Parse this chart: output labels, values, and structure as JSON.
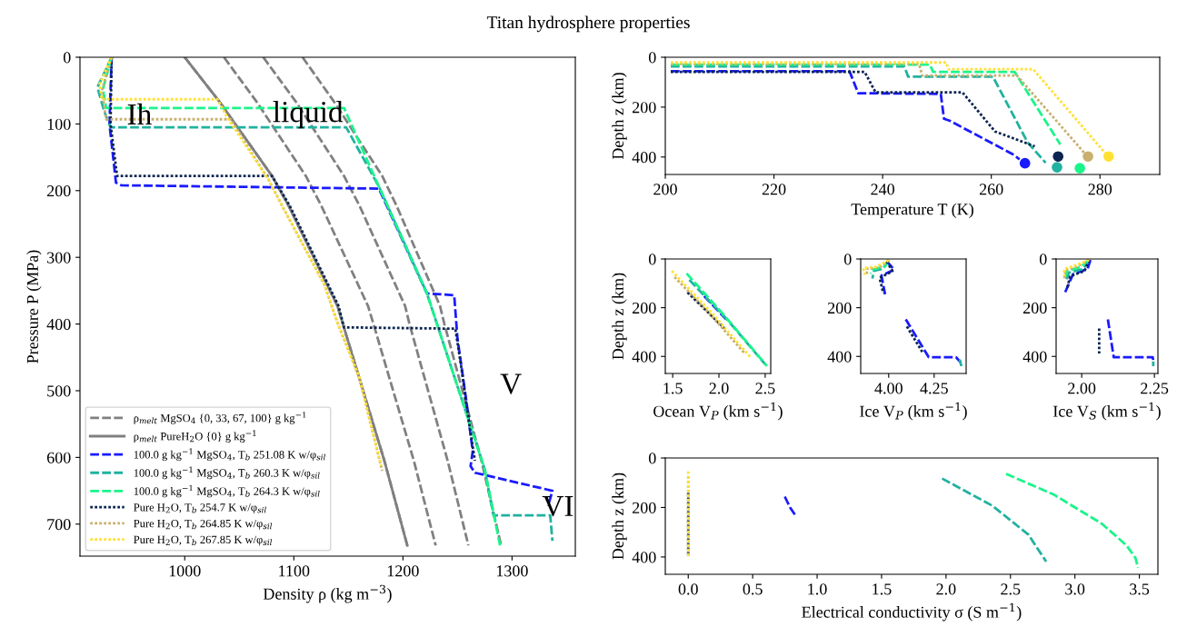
{
  "chart_data": [
    {
      "type": "line",
      "title": "Titan hydrosphere properties",
      "xlabel": "Density ρ (kg m$^{−3}$)",
      "ylabel": "Pressure P (MPa)",
      "xlim": [
        904,
        1358
      ],
      "ylim": [
        748,
        0
      ],
      "xticks": [
        1000,
        1100,
        1200,
        1300
      ],
      "yticks": [
        0,
        100,
        200,
        300,
        400,
        500,
        600,
        700
      ],
      "legend": "bottom left",
      "annotations": [
        "Ih",
        "liquid",
        "V",
        "VI"
      ],
      "series": [
        {
          "name": "ρ$_{melt}$ MgSO$_{4}$ {0, 33, 67, 100} g kg$^{−1}$",
          "color": "#808080",
          "line_style": "dashed",
          "x": [
            1000,
            1032,
            1080,
            1095,
            1140,
            1145,
            1183,
            1204
          ],
          "values": [
            0,
            67,
            178,
            222,
            373,
            400,
            605,
            732
          ]
        },
        {
          "color": "#808080",
          "line_style": "dashed",
          "x": [
            1036,
            1066,
            1111,
            1125,
            1168,
            1173,
            1210,
            1230
          ],
          "values": [
            0,
            67,
            178,
            222,
            373,
            400,
            605,
            732
          ]
        },
        {
          "color": "#808080",
          "line_style": "dashed",
          "x": [
            1072,
            1102,
            1146,
            1160,
            1202,
            1206,
            1241,
            1260
          ],
          "values": [
            0,
            67,
            178,
            222,
            373,
            400,
            605,
            732
          ]
        },
        {
          "color": "#808080",
          "line_style": "dashed",
          "x": [
            1108,
            1137,
            1181,
            1194,
            1234,
            1238,
            1272,
            1290
          ],
          "values": [
            0,
            67,
            178,
            222,
            373,
            400,
            605,
            732
          ]
        },
        {
          "name": "ρ$_{melt}$ PureH$_{2}$O {0} g kg$^{−1}$",
          "color": "#808080",
          "line_style": "solid",
          "x": [
            1000,
            1032,
            1080,
            1095,
            1140,
            1145,
            1183,
            1204
          ],
          "values": [
            0,
            67,
            178,
            222,
            373,
            400,
            605,
            732
          ]
        },
        {
          "name": "100.0 g kg$^{−1}$ MgSO$_{4}$, T$_{b}$ 251.08 K w/φ$_{sil}$",
          "color": "#1a1aff",
          "line_style": "dashed",
          "x": [
            933,
            931,
            937,
            942,
            1178,
            1222,
            1247,
            1250,
            1258,
            1264,
            1262,
            1266,
            1337,
            1333
          ],
          "values": [
            0,
            100,
            188,
            192,
            197,
            354,
            357,
            422,
            514,
            591,
            613,
            623,
            650,
            673
          ]
        },
        {
          "name": "100.0 g kg$^{−1}$ MgSO$_{4}$, T$_{b}$ 260.3 K w/φ$_{sil}$",
          "color": "#20b2a0",
          "line_style": "dashed",
          "x": [
            933,
            920,
            926,
            932,
            1148,
            1178,
            1222,
            1275,
            1283,
            1335,
            1337
          ],
          "values": [
            0,
            45,
            80,
            105,
            105,
            194,
            354,
            618,
            687,
            687,
            725
          ]
        },
        {
          "name": "100.0 g kg$^{−1}$ MgSO$_{4}$, T$_{b}$ 264.3 K w/φ$_{sil}$",
          "color": "#1af58a",
          "line_style": "dashed",
          "x": [
            933,
            925,
            928,
            1146,
            1178,
            1222,
            1275,
            1289
          ],
          "values": [
            0,
            48,
            76,
            76,
            194,
            354,
            618,
            732
          ]
        },
        {
          "name": "Pure H$_{2}$O, T$_{b}$ 254.7 K w/φ$_{sil}$",
          "color": "#0b2550",
          "line_style": "dotted",
          "x": [
            933,
            932,
            938,
            1080,
            1096,
            1141,
            1146,
            1248,
            1253,
            1262,
            1266
          ],
          "values": [
            0,
            100,
            178,
            178,
            222,
            373,
            405,
            407,
            459,
            564,
            605
          ]
        },
        {
          "name": "Pure H$_{2}$O, T$_{b}$ 264.85 K w/φ$_{sil}$",
          "color": "#c8b06e",
          "line_style": "dotted",
          "x": [
            933,
            924,
            928,
            1042,
            1077,
            1090,
            1128,
            1140,
            1160,
            1181
          ],
          "values": [
            0,
            50,
            93,
            93,
            184,
            225,
            341,
            398,
            480,
            620
          ]
        },
        {
          "name": "Pure H$_{2}$O, T$_{b}$ 267.85 K w/φ$_{sil}$",
          "color": "#ffe135",
          "line_style": "dotted",
          "x": [
            933,
            922,
            924,
            1030,
            1040,
            1077,
            1090,
            1128,
            1140,
            1160,
            1180
          ],
          "values": [
            0,
            40,
            63,
            63,
            93,
            184,
            225,
            341,
            398,
            480,
            613
          ]
        }
      ]
    },
    {
      "type": "line",
      "xlabel": "Temperature T (K)",
      "ylabel": "Depth z (km)",
      "xlim": [
        200,
        291
      ],
      "ylim": [
        470,
        0
      ],
      "xticks": [
        200,
        220,
        240,
        260,
        280
      ],
      "yticks": [
        0,
        200,
        400
      ],
      "series": [
        {
          "color": "#1a1aff",
          "line_style": "dashed",
          "x": [
            201,
            233.9,
            235.5,
            250.7,
            251.3,
            252.3,
            263.8,
            265.2
          ],
          "values": [
            56,
            56,
            144,
            147,
            247,
            254,
            387,
            409
          ]
        },
        {
          "color": "#20b2a0",
          "line_style": "dashed",
          "x": [
            201,
            244,
            244.7,
            260.3,
            266.7,
            270
          ],
          "values": [
            37,
            37,
            78,
            78,
            342,
            423
          ]
        },
        {
          "color": "#1af58a",
          "line_style": "dashed",
          "x": [
            201,
            248.7,
            249.3,
            264.3,
            272.7
          ],
          "values": [
            30,
            30,
            59,
            59,
            350
          ]
        },
        {
          "color": "#0b2550",
          "line_style": "dotted",
          "x": [
            201,
            236.7,
            238.7,
            254.7,
            260.7,
            268
          ],
          "values": [
            59,
            59,
            141,
            141,
            298,
            357
          ]
        },
        {
          "color": "#c8b06e",
          "line_style": "dotted",
          "x": [
            201,
            246.7,
            247.3,
            264.7,
            277.7
          ],
          "values": [
            27,
            27,
            73,
            73,
            398
          ]
        },
        {
          "color": "#ffe135",
          "line_style": "dotted",
          "x": [
            201,
            251.7,
            252.1,
            267.7,
            281.5
          ],
          "values": [
            21,
            21,
            48,
            48,
            398
          ]
        },
        {
          "type": "scatter",
          "marker": "circle",
          "colors": [
            "#1a1aff",
            "#20b2a0",
            "#1af58a",
            "#0b2550",
            "#c8b06e",
            "#ffe135"
          ],
          "x": [
            266.2,
            272.1,
            276.3,
            272.3,
            277.8,
            281.6
          ],
          "values": [
            425,
            441,
            445,
            398,
            398,
            398
          ]
        }
      ]
    },
    {
      "type": "line",
      "xlabel": "Ocean V$_{P}$ (km s$^{−1}$)",
      "ylabel": "Depth z (km)",
      "xlim": [
        1.42,
        2.56
      ],
      "ylim": [
        470,
        0
      ],
      "xticks": [
        1.5,
        {
          "value": 2.0,
          "label": "2.0"
        },
        2.5
      ],
      "yticks": [
        0,
        200,
        400
      ],
      "series": [
        {
          "color": "#1a1aff",
          "line_style": "dashed",
          "x": [
            1.84,
            2.08
          ],
          "values": [
            152,
            248
          ]
        },
        {
          "color": "#20b2a0",
          "line_style": "dashed",
          "x": [
            1.68,
            2.08,
            2.5
          ],
          "values": [
            86,
            245,
            432
          ]
        },
        {
          "color": "#1af58a",
          "line_style": "dashed",
          "x": [
            1.65,
            2.06,
            2.52
          ],
          "values": [
            59,
            233,
            440
          ]
        },
        {
          "color": "#0b2550",
          "line_style": "dotted",
          "x": [
            1.66,
            2.06
          ],
          "values": [
            137,
            285
          ]
        },
        {
          "color": "#c8b06e",
          "line_style": "dotted",
          "x": [
            1.52,
            1.9,
            2.28
          ],
          "values": [
            74,
            225,
            388
          ]
        },
        {
          "color": "#ffe135",
          "line_style": "dotted",
          "x": [
            1.49,
            1.92,
            2.34
          ],
          "values": [
            49,
            220,
            403
          ]
        }
      ]
    },
    {
      "type": "line",
      "xlabel": "Ice V$_{P}$ (km s$^{−1}$)",
      "xlim": [
        3.846,
        4.426
      ],
      "ylim": [
        470,
        0
      ],
      "xticks": [
        {
          "value": 4.0,
          "label": "4.00"
        },
        4.25
      ],
      "yticks": [
        0,
        200,
        400
      ],
      "series": [
        {
          "color": "#1a1aff",
          "line_style": "dashed",
          "x": [
            3.99,
            4.03,
            3.96,
            3.98,
            null,
            4.094,
            4.22,
            4.37,
            4.396
          ],
          "values": [
            10,
            44,
            68,
            145,
            null,
            248,
            403,
            403,
            425
          ]
        },
        {
          "color": "#20b2a0",
          "line_style": "dashed",
          "x": [
            4.0,
            3.97,
            3.92,
            3.91,
            null,
            4.39,
            4.4
          ],
          "values": [
            5,
            40,
            48,
            80,
            null,
            413,
            440
          ]
        },
        {
          "color": "#1af58a",
          "line_style": "dashed",
          "x": [
            4.0,
            3.98,
            3.91,
            3.9
          ],
          "values": [
            5,
            30,
            44,
            60
          ]
        },
        {
          "color": "#0b2550",
          "line_style": "dotted",
          "x": [
            3.99,
            4.02,
            3.95,
            3.97,
            null,
            4.1,
            4.19
          ],
          "values": [
            10,
            50,
            78,
            140,
            null,
            277,
            388
          ]
        },
        {
          "color": "#c8b06e",
          "line_style": "dotted",
          "x": [
            4.0,
            3.95,
            3.88,
            3.88
          ],
          "values": [
            5,
            35,
            40,
            70
          ]
        },
        {
          "color": "#ffe135",
          "line_style": "dotted",
          "x": [
            4.0,
            3.93,
            3.86,
            3.87
          ],
          "values": [
            5,
            32,
            38,
            65
          ]
        }
      ]
    },
    {
      "type": "line",
      "xlabel": "Ice V$_{S}$ (km s$^{−1}$)",
      "xlim": [
        1.912,
        2.262
      ],
      "ylim": [
        470,
        0
      ],
      "xticks": [
        {
          "value": 2.0,
          "label": "2.00"
        },
        2.25
      ],
      "yticks": [
        0,
        200,
        400
      ],
      "series": [
        {
          "color": "#1a1aff",
          "line_style": "dashed",
          "x": [
            2.03,
            2.02,
            1.97,
            1.94,
            null,
            2.09,
            2.11,
            2.244,
            2.246
          ],
          "values": [
            4,
            41,
            63,
            145,
            null,
            248,
            403,
            403,
            417
          ]
        },
        {
          "color": "#20b2a0",
          "line_style": "dashed",
          "x": [
            2.025,
            2.006,
            1.956,
            1.944,
            null,
            2.246,
            2.246
          ],
          "values": [
            4,
            41,
            56,
            93,
            null,
            421,
            440
          ]
        },
        {
          "color": "#1af58a",
          "line_style": "dashed",
          "x": [
            2.025,
            1.994,
            1.95,
            1.944
          ],
          "values": [
            4,
            34,
            49,
            71
          ]
        },
        {
          "color": "#0b2550",
          "line_style": "dotted",
          "x": [
            2.025,
            2.01,
            1.96,
            1.95,
            null,
            2.06,
            2.06
          ],
          "values": [
            4,
            49,
            71,
            122,
            null,
            285,
            388
          ]
        },
        {
          "color": "#c8b06e",
          "line_style": "dotted",
          "x": [
            2.025,
            1.98,
            1.944,
            1.94
          ],
          "values": [
            4,
            34,
            44,
            86
          ]
        },
        {
          "color": "#ffe135",
          "line_style": "dotted",
          "x": [
            2.025,
            1.97,
            1.94,
            1.94
          ],
          "values": [
            4,
            30,
            41,
            71
          ]
        }
      ]
    },
    {
      "type": "line",
      "xlabel": "Electrical conductivity σ (S m$^{−1}$)",
      "ylabel": "Depth z (km)",
      "xlim": [
        -0.178,
        3.644
      ],
      "ylim": [
        470,
        0
      ],
      "xticks": [
        {
          "value": 0,
          "label": "0.0"
        },
        0.5,
        {
          "value": 1,
          "label": "1.0"
        },
        1.5,
        {
          "value": 2,
          "label": "2.0"
        },
        2.5,
        {
          "value": 3,
          "label": "3.0"
        },
        3.5
      ],
      "yticks": [
        0,
        200,
        400
      ],
      "series": [
        {
          "color": "#1a1aff",
          "line_style": "dashed",
          "x": [
            0.749,
            0.79,
            0.84
          ],
          "values": [
            156,
            200,
            239
          ]
        },
        {
          "color": "#20b2a0",
          "line_style": "dashed",
          "x": [
            1.97,
            2.36,
            2.64,
            2.777
          ],
          "values": [
            83,
            193,
            310,
            419
          ]
        },
        {
          "color": "#1af58a",
          "line_style": "dashed",
          "x": [
            2.466,
            2.84,
            3.21,
            3.4,
            3.47,
            3.49
          ],
          "values": [
            64,
            149,
            266,
            353,
            404,
            444
          ]
        },
        {
          "color": "#0b2550",
          "line_style": "dotted",
          "x": [
            0,
            0
          ],
          "values": [
            141,
            390
          ]
        },
        {
          "color": "#c8b06e",
          "line_style": "dotted",
          "x": [
            0,
            0
          ],
          "values": [
            73,
            398
          ]
        },
        {
          "color": "#ffe135",
          "line_style": "dotted",
          "x": [
            0,
            0
          ],
          "values": [
            54,
            400
          ]
        }
      ]
    }
  ]
}
